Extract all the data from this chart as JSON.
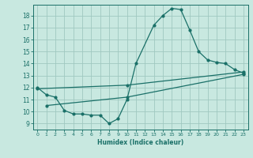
{
  "bg_color": "#c8e8e0",
  "grid_color": "#a0c8c0",
  "line_color": "#1a7068",
  "xlabel": "Humidex (Indice chaleur)",
  "xlim": [
    -0.5,
    23.5
  ],
  "ylim": [
    8.5,
    18.9
  ],
  "yticks": [
    9,
    10,
    11,
    12,
    13,
    14,
    15,
    16,
    17,
    18
  ],
  "xticks": [
    0,
    1,
    2,
    3,
    4,
    5,
    6,
    7,
    8,
    9,
    10,
    11,
    12,
    13,
    14,
    15,
    16,
    17,
    18,
    19,
    20,
    21,
    22,
    23
  ],
  "line1_x": [
    0,
    1,
    2,
    3,
    4,
    5,
    6,
    7,
    8,
    9,
    10,
    11,
    13,
    14,
    15,
    16,
    17,
    18,
    19,
    20,
    21,
    22,
    23
  ],
  "line1_y": [
    12.0,
    11.4,
    11.2,
    10.1,
    9.8,
    9.8,
    9.7,
    9.7,
    9.0,
    9.4,
    11.0,
    14.0,
    17.2,
    18.0,
    18.6,
    18.5,
    16.8,
    15.0,
    14.3,
    14.1,
    14.0,
    13.5,
    13.2
  ],
  "line2_x": [
    0,
    10,
    23
  ],
  "line2_y": [
    11.9,
    12.2,
    13.3
  ],
  "line3_x": [
    1,
    10,
    23
  ],
  "line3_y": [
    10.5,
    11.2,
    13.1
  ],
  "marker_size": 2.0,
  "linewidth": 0.9
}
